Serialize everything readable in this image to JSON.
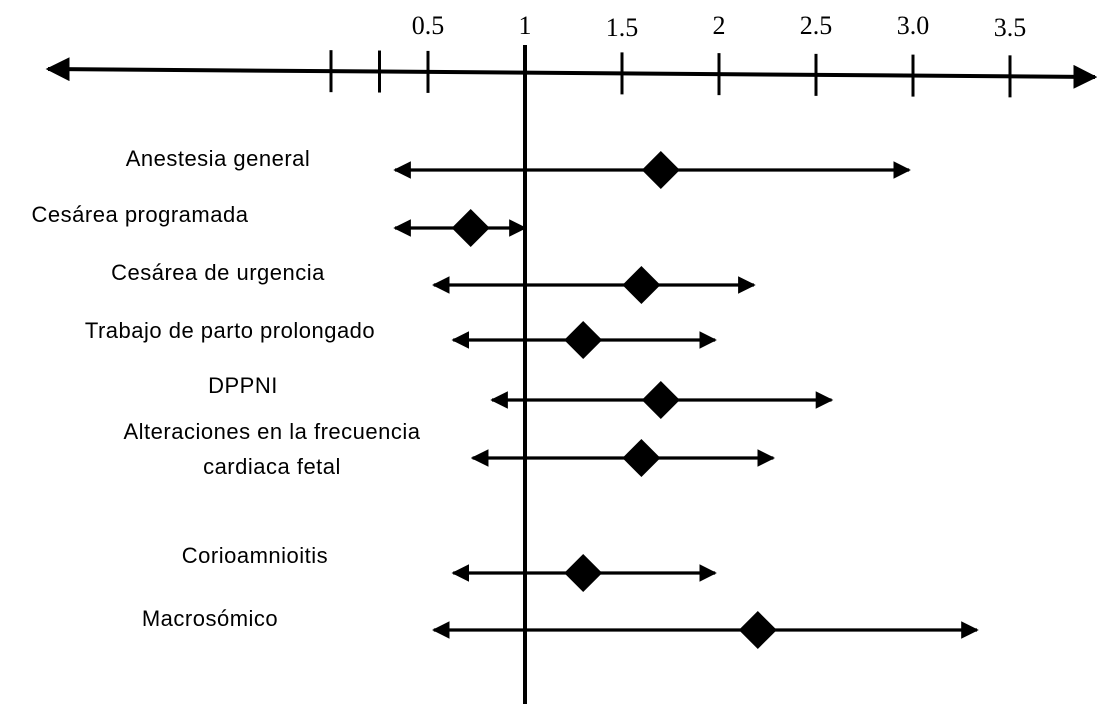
{
  "chart_data": {
    "type": "forest",
    "title": "",
    "xlabel": "",
    "ylabel": "",
    "reference_line": 1,
    "xlim": [
      -1.0,
      3.65
    ],
    "x_ticks": [
      0,
      0.25,
      0.5,
      1,
      1.5,
      2,
      2.5,
      3.0,
      3.5
    ],
    "tick_labels": [
      "",
      "",
      "0.5",
      "1",
      "1.5",
      "2",
      "2.5",
      "3.0",
      "3.5"
    ],
    "grid": false,
    "rows": [
      {
        "label_lines": [
          "Anestesia general"
        ],
        "estimate": 1.7,
        "lower": 0.33,
        "upper": 2.98
      },
      {
        "label_lines": [
          "Cesárea programada"
        ],
        "estimate": 0.72,
        "lower": 0.33,
        "upper": 1.0
      },
      {
        "label_lines": [
          "Cesárea de urgencia"
        ],
        "estimate": 1.6,
        "lower": 0.53,
        "upper": 2.18
      },
      {
        "label_lines": [
          "Trabajo de parto prolongado"
        ],
        "estimate": 1.3,
        "lower": 0.63,
        "upper": 1.98
      },
      {
        "label_lines": [
          "DPPNI"
        ],
        "estimate": 1.7,
        "lower": 0.83,
        "upper": 2.58
      },
      {
        "label_lines": [
          "Alteraciones   en la frecuencia",
          "cardiaca fetal"
        ],
        "estimate": 1.6,
        "lower": 0.73,
        "upper": 2.28
      },
      {
        "label_lines": [
          "Corioamnioitis"
        ],
        "estimate": 1.3,
        "lower": 0.63,
        "upper": 1.98
      },
      {
        "label_lines": [
          "Macrosómico"
        ],
        "estimate": 2.2,
        "lower": 0.53,
        "upper": 3.33
      }
    ]
  }
}
